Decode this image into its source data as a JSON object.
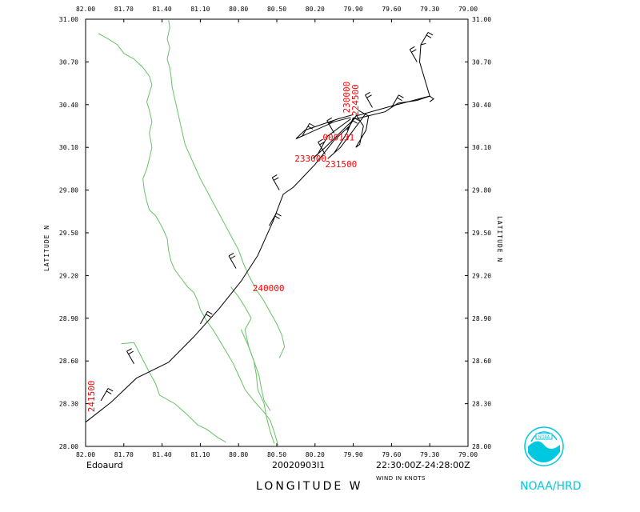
{
  "plot": {
    "storm_name": "Edoaurd",
    "flight_id": "20020903I1",
    "time_range": "22:30:00Z-24:28:00Z",
    "wind_note": "WIND IN KNOTS",
    "xlabel": "LONGITUDE   W",
    "ylabel_left": "LATITUDE   N",
    "ylabel_right": "LATITUDE   N",
    "agency": "NOAA/HRD"
  },
  "axes": {
    "lon_ticks": [
      "82.00",
      "81.70",
      "81.40",
      "81.10",
      "80.80",
      "80.50",
      "80.20",
      "79.90",
      "79.60",
      "79.30",
      "79.00"
    ],
    "lat_ticks_top_to_bottom": [
      "31.00",
      "30.70",
      "30.40",
      "30.10",
      "29.80",
      "29.50",
      "29.20",
      "28.90",
      "28.60",
      "28.30",
      "28.00"
    ],
    "lon_range_w": [
      82.0,
      79.0
    ],
    "lat_range_n": [
      28.0,
      31.0
    ]
  },
  "chart_data": {
    "type": "map",
    "track_color": "#000000",
    "coast_color": "#66c266",
    "label_color": "#ff0000",
    "time_labels": [
      {
        "text": "241500",
        "lon": 81.93,
        "lat": 28.24,
        "rotate": true
      },
      {
        "text": "240000",
        "lon": 80.69,
        "lat": 29.09,
        "rotate": false
      },
      {
        "text": "233000",
        "lon": 80.36,
        "lat": 30.0,
        "rotate": false
      },
      {
        "text": "231500",
        "lon": 80.12,
        "lat": 29.96,
        "rotate": false
      },
      {
        "text": "230000",
        "lon": 79.93,
        "lat": 30.34,
        "rotate": true
      },
      {
        "text": "224500",
        "lon": 79.86,
        "lat": 30.32,
        "rotate": true
      },
      {
        "text": "000131",
        "lon": 80.14,
        "lat": 30.15,
        "rotate": false
      }
    ],
    "track": [
      [
        82.0,
        28.17
      ],
      [
        81.8,
        28.31
      ],
      [
        81.6,
        28.48
      ],
      [
        81.35,
        28.59
      ],
      [
        81.15,
        28.77
      ],
      [
        80.95,
        28.97
      ],
      [
        80.78,
        29.16
      ],
      [
        80.65,
        29.34
      ],
      [
        80.53,
        29.58
      ],
      [
        80.45,
        29.77
      ],
      [
        80.37,
        29.82
      ],
      [
        80.2,
        29.98
      ],
      [
        80.05,
        30.15
      ],
      [
        79.93,
        30.25
      ],
      [
        79.88,
        30.32
      ],
      [
        79.6,
        30.39
      ],
      [
        79.3,
        30.46
      ],
      [
        79.27,
        30.44
      ],
      [
        79.3,
        30.42
      ]
    ],
    "track_loops": [
      [
        [
          79.92,
          30.31
        ],
        [
          80.05,
          30.28
        ],
        [
          80.3,
          30.18
        ],
        [
          80.35,
          30.16
        ],
        [
          80.28,
          30.22
        ],
        [
          80.02,
          30.3
        ],
        [
          79.9,
          30.33
        ]
      ],
      [
        [
          79.92,
          30.3
        ],
        [
          80.1,
          30.18
        ],
        [
          80.18,
          30.05
        ],
        [
          80.22,
          30.02
        ],
        [
          80.12,
          30.1
        ],
        [
          79.95,
          30.25
        ],
        [
          79.88,
          30.31
        ]
      ],
      [
        [
          79.9,
          30.31
        ],
        [
          79.95,
          30.2
        ],
        [
          80.05,
          30.06
        ],
        [
          80.1,
          30.02
        ],
        [
          80.0,
          30.1
        ],
        [
          79.85,
          30.28
        ],
        [
          79.8,
          30.34
        ]
      ],
      [
        [
          79.88,
          30.33
        ],
        [
          79.82,
          30.25
        ],
        [
          79.85,
          30.12
        ],
        [
          79.88,
          30.1
        ],
        [
          79.8,
          30.22
        ],
        [
          79.78,
          30.32
        ],
        [
          79.86,
          30.36
        ]
      ],
      [
        [
          79.88,
          30.3
        ],
        [
          79.65,
          30.35
        ],
        [
          79.55,
          30.41
        ],
        [
          79.4,
          30.43
        ],
        [
          79.3,
          30.46
        ]
      ],
      [
        [
          79.3,
          30.46
        ],
        [
          79.38,
          30.7
        ],
        [
          79.37,
          30.82
        ],
        [
          79.33,
          30.83
        ]
      ]
    ],
    "coastlines": [
      [
        [
          81.9,
          30.9
        ],
        [
          81.82,
          30.86
        ],
        [
          81.75,
          30.82
        ],
        [
          81.7,
          30.76
        ],
        [
          81.62,
          30.72
        ],
        [
          81.55,
          30.66
        ],
        [
          81.5,
          30.6
        ],
        [
          81.48,
          30.54
        ],
        [
          81.5,
          30.48
        ],
        [
          81.52,
          30.42
        ],
        [
          81.5,
          30.36
        ],
        [
          81.48,
          30.28
        ],
        [
          81.5,
          30.2
        ],
        [
          81.48,
          30.1
        ],
        [
          81.5,
          30.02
        ],
        [
          81.52,
          29.95
        ],
        [
          81.55,
          29.88
        ],
        [
          81.54,
          29.8
        ],
        [
          81.52,
          29.72
        ],
        [
          81.5,
          29.66
        ],
        [
          81.45,
          29.62
        ],
        [
          81.4,
          29.54
        ],
        [
          81.36,
          29.46
        ],
        [
          81.35,
          29.38
        ],
        [
          81.33,
          29.3
        ],
        [
          81.3,
          29.24
        ],
        [
          81.25,
          29.18
        ],
        [
          81.2,
          29.12
        ],
        [
          81.15,
          29.08
        ],
        [
          81.12,
          29.02
        ],
        [
          81.1,
          28.96
        ],
        [
          81.05,
          28.88
        ],
        [
          81.0,
          28.82
        ],
        [
          80.96,
          28.76
        ],
        [
          80.92,
          28.7
        ],
        [
          80.88,
          28.64
        ],
        [
          80.84,
          28.58
        ],
        [
          80.8,
          28.5
        ],
        [
          80.75,
          28.4
        ],
        [
          80.68,
          28.32
        ],
        [
          80.6,
          28.24
        ],
        [
          80.55,
          28.18
        ],
        [
          80.52,
          28.1
        ],
        [
          80.5,
          28.04
        ],
        [
          80.49,
          28.0
        ]
      ],
      [
        [
          81.35,
          31.0
        ],
        [
          81.34,
          30.94
        ],
        [
          81.36,
          30.86
        ],
        [
          81.34,
          30.8
        ],
        [
          81.36,
          30.72
        ],
        [
          81.34,
          30.66
        ],
        [
          81.33,
          30.6
        ],
        [
          81.32,
          30.52
        ],
        [
          81.3,
          30.44
        ],
        [
          81.28,
          30.36
        ],
        [
          81.26,
          30.28
        ],
        [
          81.24,
          30.2
        ],
        [
          81.22,
          30.12
        ],
        [
          81.18,
          30.04
        ],
        [
          81.14,
          29.96
        ],
        [
          81.1,
          29.88
        ],
        [
          81.04,
          29.78
        ],
        [
          80.98,
          29.68
        ],
        [
          80.92,
          29.58
        ],
        [
          80.86,
          29.48
        ],
        [
          80.8,
          29.38
        ],
        [
          80.76,
          29.28
        ],
        [
          80.72,
          29.2
        ],
        [
          80.66,
          29.1
        ],
        [
          80.6,
          29.02
        ],
        [
          80.55,
          28.94
        ],
        [
          80.5,
          28.86
        ],
        [
          80.46,
          28.78
        ],
        [
          80.44,
          28.7
        ],
        [
          80.48,
          28.62
        ]
      ],
      [
        [
          81.72,
          28.72
        ],
        [
          81.62,
          28.73
        ],
        [
          81.58,
          28.66
        ],
        [
          81.5,
          28.52
        ],
        [
          81.45,
          28.44
        ],
        [
          81.42,
          28.36
        ],
        [
          81.3,
          28.3
        ],
        [
          81.2,
          28.22
        ],
        [
          81.12,
          28.15
        ],
        [
          81.05,
          28.12
        ],
        [
          80.96,
          28.06
        ],
        [
          80.9,
          28.03
        ]
      ],
      [
        [
          80.7,
          28.9
        ],
        [
          80.75,
          28.82
        ],
        [
          80.72,
          28.7
        ],
        [
          80.68,
          28.6
        ],
        [
          80.64,
          28.5
        ],
        [
          80.62,
          28.4
        ],
        [
          80.6,
          28.32
        ],
        [
          80.55,
          28.25
        ]
      ],
      [
        [
          80.78,
          28.82
        ],
        [
          80.72,
          28.7
        ],
        [
          80.68,
          28.6
        ],
        [
          80.66,
          28.5
        ],
        [
          80.65,
          28.4
        ],
        [
          80.6,
          28.3
        ],
        [
          80.58,
          28.2
        ],
        [
          80.55,
          28.1
        ],
        [
          80.52,
          28.02
        ]
      ],
      [
        [
          80.86,
          29.12
        ],
        [
          80.8,
          29.05
        ],
        [
          80.75,
          28.98
        ],
        [
          80.7,
          28.9
        ]
      ]
    ],
    "wind_barbs": [
      [
        81.88,
        28.32,
        40
      ],
      [
        81.62,
        28.58,
        40
      ],
      [
        81.1,
        28.86,
        40
      ],
      [
        80.82,
        29.25,
        40
      ],
      [
        80.56,
        29.55,
        40
      ],
      [
        80.48,
        29.8,
        40
      ],
      [
        80.3,
        30.18,
        40
      ],
      [
        80.05,
        30.2,
        40
      ],
      [
        79.95,
        30.22,
        40
      ],
      [
        79.75,
        30.38,
        40
      ],
      [
        79.6,
        30.38,
        40
      ],
      [
        79.4,
        30.7,
        40
      ],
      [
        79.37,
        30.82,
        40
      ],
      [
        80.12,
        30.05,
        40
      ]
    ]
  }
}
